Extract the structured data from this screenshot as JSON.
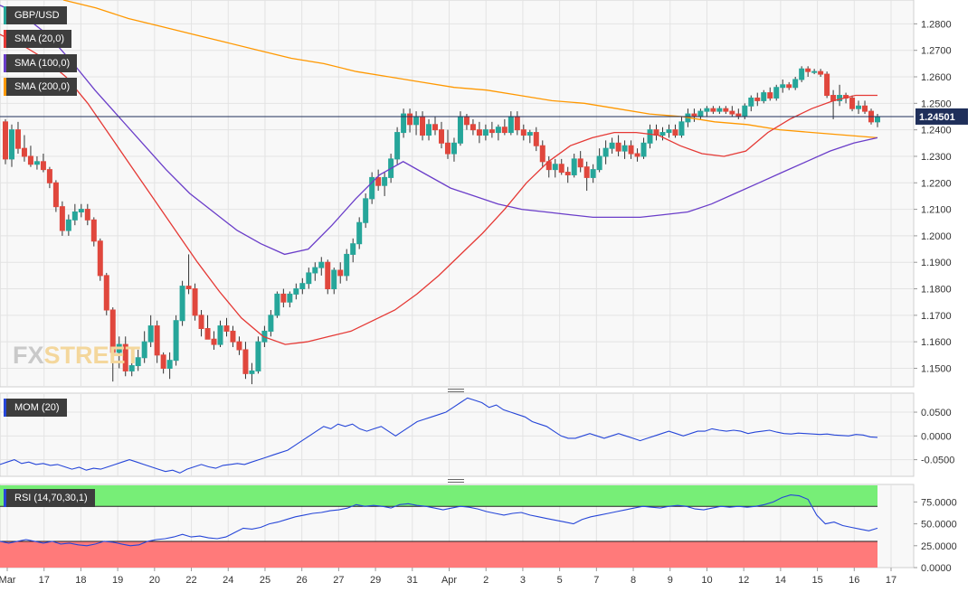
{
  "chart_data": {
    "type": "line",
    "instrument": "GBP/USD",
    "price_panel": {
      "ylim": [
        1.143,
        1.289
      ],
      "y_ticks": [
        "1.2800",
        "1.2700",
        "1.2600",
        "1.2500",
        "1.2400",
        "1.2300",
        "1.2200",
        "1.2100",
        "1.2000",
        "1.1900",
        "1.1800",
        "1.1700",
        "1.1600",
        "1.1500"
      ],
      "last_price": "1.24501",
      "legend": [
        {
          "label": "GBP/USD",
          "color": "#26a69a"
        },
        {
          "label": "SMA (20,0)",
          "color": "#e53935"
        },
        {
          "label": "SMA (100,0)",
          "color": "#6a3dc9"
        },
        {
          "label": "SMA (200,0)",
          "color": "#ff9800"
        }
      ],
      "candles": [
        [
          1.243,
          1.244,
          1.227,
          1.229
        ],
        [
          1.229,
          1.242,
          1.226,
          1.24
        ],
        [
          1.24,
          1.243,
          1.231,
          1.233
        ],
        [
          1.233,
          1.238,
          1.228,
          1.23
        ],
        [
          1.23,
          1.234,
          1.226,
          1.227
        ],
        [
          1.227,
          1.23,
          1.225,
          1.228
        ],
        [
          1.228,
          1.231,
          1.224,
          1.225
        ],
        [
          1.225,
          1.226,
          1.218,
          1.22
        ],
        [
          1.22,
          1.221,
          1.209,
          1.211
        ],
        [
          1.211,
          1.213,
          1.2,
          1.202
        ],
        [
          1.202,
          1.208,
          1.2,
          1.206
        ],
        [
          1.206,
          1.212,
          1.204,
          1.209
        ],
        [
          1.209,
          1.212,
          1.207,
          1.21
        ],
        [
          1.21,
          1.212,
          1.204,
          1.206
        ],
        [
          1.206,
          1.207,
          1.196,
          1.198
        ],
        [
          1.198,
          1.199,
          1.183,
          1.185
        ],
        [
          1.185,
          1.186,
          1.17,
          1.172
        ],
        [
          1.172,
          1.173,
          1.145,
          1.156
        ],
        [
          1.156,
          1.162,
          1.15,
          1.159
        ],
        [
          1.159,
          1.162,
          1.147,
          1.149
        ],
        [
          1.149,
          1.152,
          1.147,
          1.151
        ],
        [
          1.151,
          1.157,
          1.149,
          1.154
        ],
        [
          1.154,
          1.164,
          1.152,
          1.16
        ],
        [
          1.16,
          1.17,
          1.158,
          1.166
        ],
        [
          1.166,
          1.168,
          1.152,
          1.155
        ],
        [
          1.155,
          1.156,
          1.148,
          1.15
        ],
        [
          1.15,
          1.156,
          1.146,
          1.153
        ],
        [
          1.153,
          1.17,
          1.151,
          1.168
        ],
        [
          1.168,
          1.183,
          1.166,
          1.181
        ],
        [
          1.181,
          1.193,
          1.178,
          1.18
        ],
        [
          1.18,
          1.182,
          1.168,
          1.17
        ],
        [
          1.17,
          1.172,
          1.162,
          1.165
        ],
        [
          1.165,
          1.17,
          1.161,
          1.161
        ],
        [
          1.161,
          1.164,
          1.157,
          1.159
        ],
        [
          1.159,
          1.168,
          1.158,
          1.166
        ],
        [
          1.166,
          1.169,
          1.162,
          1.164
        ],
        [
          1.164,
          1.166,
          1.158,
          1.16
        ],
        [
          1.16,
          1.162,
          1.155,
          1.157
        ],
        [
          1.157,
          1.16,
          1.146,
          1.148
        ],
        [
          1.148,
          1.152,
          1.144,
          1.149
        ],
        [
          1.149,
          1.162,
          1.148,
          1.16
        ],
        [
          1.16,
          1.166,
          1.158,
          1.164
        ],
        [
          1.164,
          1.172,
          1.162,
          1.17
        ],
        [
          1.17,
          1.179,
          1.169,
          1.178
        ],
        [
          1.178,
          1.18,
          1.173,
          1.175
        ],
        [
          1.175,
          1.179,
          1.173,
          1.178
        ],
        [
          1.178,
          1.182,
          1.176,
          1.18
        ],
        [
          1.18,
          1.184,
          1.178,
          1.182
        ],
        [
          1.182,
          1.188,
          1.18,
          1.186
        ],
        [
          1.186,
          1.19,
          1.183,
          1.188
        ],
        [
          1.188,
          1.192,
          1.185,
          1.19
        ],
        [
          1.19,
          1.191,
          1.178,
          1.18
        ],
        [
          1.18,
          1.188,
          1.178,
          1.187
        ],
        [
          1.187,
          1.19,
          1.182,
          1.185
        ],
        [
          1.185,
          1.195,
          1.183,
          1.193
        ],
        [
          1.193,
          1.199,
          1.19,
          1.197
        ],
        [
          1.197,
          1.207,
          1.195,
          1.205
        ],
        [
          1.205,
          1.216,
          1.203,
          1.214
        ],
        [
          1.214,
          1.224,
          1.212,
          1.222
        ],
        [
          1.222,
          1.225,
          1.217,
          1.219
        ],
        [
          1.219,
          1.224,
          1.215,
          1.222
        ],
        [
          1.222,
          1.231,
          1.22,
          1.229
        ],
        [
          1.229,
          1.241,
          1.227,
          1.239
        ],
        [
          1.239,
          1.248,
          1.237,
          1.246
        ],
        [
          1.246,
          1.248,
          1.239,
          1.242
        ],
        [
          1.242,
          1.247,
          1.238,
          1.245
        ],
        [
          1.245,
          1.247,
          1.236,
          1.238
        ],
        [
          1.238,
          1.244,
          1.236,
          1.242
        ],
        [
          1.242,
          1.245,
          1.238,
          1.24
        ],
        [
          1.24,
          1.243,
          1.233,
          1.235
        ],
        [
          1.235,
          1.24,
          1.229,
          1.231
        ],
        [
          1.231,
          1.237,
          1.228,
          1.235
        ],
        [
          1.235,
          1.247,
          1.234,
          1.245
        ],
        [
          1.245,
          1.246,
          1.24,
          1.242
        ],
        [
          1.242,
          1.244,
          1.238,
          1.24
        ],
        [
          1.24,
          1.243,
          1.235,
          1.238
        ],
        [
          1.238,
          1.242,
          1.236,
          1.24
        ],
        [
          1.24,
          1.243,
          1.237,
          1.239
        ],
        [
          1.239,
          1.242,
          1.236,
          1.241
        ],
        [
          1.241,
          1.244,
          1.238,
          1.239
        ],
        [
          1.239,
          1.247,
          1.238,
          1.245
        ],
        [
          1.245,
          1.247,
          1.238,
          1.24
        ],
        [
          1.24,
          1.242,
          1.236,
          1.238
        ],
        [
          1.238,
          1.24,
          1.235,
          1.239
        ],
        [
          1.239,
          1.241,
          1.232,
          1.234
        ],
        [
          1.234,
          1.236,
          1.226,
          1.228
        ],
        [
          1.228,
          1.23,
          1.222,
          1.225
        ],
        [
          1.225,
          1.229,
          1.222,
          1.227
        ],
        [
          1.227,
          1.229,
          1.223,
          1.224
        ],
        [
          1.224,
          1.226,
          1.22,
          1.223
        ],
        [
          1.223,
          1.231,
          1.222,
          1.229
        ],
        [
          1.229,
          1.232,
          1.224,
          1.226
        ],
        [
          1.226,
          1.228,
          1.217,
          1.222
        ],
        [
          1.222,
          1.227,
          1.22,
          1.225
        ],
        [
          1.225,
          1.233,
          1.224,
          1.23
        ],
        [
          1.23,
          1.236,
          1.227,
          1.233
        ],
        [
          1.233,
          1.237,
          1.231,
          1.235
        ],
        [
          1.235,
          1.238,
          1.23,
          1.232
        ],
        [
          1.232,
          1.236,
          1.229,
          1.234
        ],
        [
          1.234,
          1.236,
          1.229,
          1.231
        ],
        [
          1.231,
          1.233,
          1.228,
          1.23
        ],
        [
          1.23,
          1.237,
          1.229,
          1.235
        ],
        [
          1.235,
          1.242,
          1.233,
          1.24
        ],
        [
          1.24,
          1.242,
          1.236,
          1.238
        ],
        [
          1.238,
          1.241,
          1.236,
          1.239
        ],
        [
          1.239,
          1.242,
          1.237,
          1.24
        ],
        [
          1.24,
          1.242,
          1.237,
          1.238
        ],
        [
          1.238,
          1.245,
          1.237,
          1.243
        ],
        [
          1.243,
          1.248,
          1.241,
          1.246
        ],
        [
          1.246,
          1.248,
          1.243,
          1.245
        ],
        [
          1.245,
          1.248,
          1.244,
          1.247
        ],
        [
          1.247,
          1.249,
          1.245,
          1.248
        ],
        [
          1.248,
          1.249,
          1.246,
          1.247
        ],
        [
          1.247,
          1.249,
          1.246,
          1.248
        ],
        [
          1.248,
          1.249,
          1.246,
          1.247
        ],
        [
          1.247,
          1.249,
          1.245,
          1.246
        ],
        [
          1.246,
          1.248,
          1.244,
          1.245
        ],
        [
          1.245,
          1.25,
          1.244,
          1.249
        ],
        [
          1.249,
          1.253,
          1.247,
          1.252
        ],
        [
          1.252,
          1.254,
          1.249,
          1.251
        ],
        [
          1.251,
          1.255,
          1.25,
          1.254
        ],
        [
          1.254,
          1.256,
          1.251,
          1.252
        ],
        [
          1.252,
          1.257,
          1.251,
          1.256
        ],
        [
          1.256,
          1.259,
          1.254,
          1.257
        ],
        [
          1.257,
          1.258,
          1.255,
          1.256
        ],
        [
          1.256,
          1.26,
          1.255,
          1.259
        ],
        [
          1.259,
          1.264,
          1.258,
          1.263
        ],
        [
          1.263,
          1.264,
          1.26,
          1.262
        ],
        [
          1.262,
          1.263,
          1.261,
          1.262
        ],
        [
          1.262,
          1.263,
          1.26,
          1.261
        ],
        [
          1.261,
          1.262,
          1.252,
          1.253
        ],
        [
          1.253,
          1.255,
          1.244,
          1.251
        ],
        [
          1.251,
          1.257,
          1.249,
          1.253
        ],
        [
          1.253,
          1.254,
          1.25,
          1.252
        ],
        [
          1.252,
          1.253,
          1.247,
          1.248
        ],
        [
          1.248,
          1.251,
          1.246,
          1.249
        ],
        [
          1.249,
          1.251,
          1.246,
          1.247
        ],
        [
          1.247,
          1.248,
          1.242,
          1.243
        ],
        [
          1.243,
          1.246,
          1.241,
          1.245
        ]
      ],
      "sma20": [
        1.276,
        1.272,
        1.267,
        1.26,
        1.25,
        1.238,
        1.226,
        1.214,
        1.202,
        1.19,
        1.179,
        1.169,
        1.162,
        1.159,
        1.16,
        1.162,
        1.164,
        1.168,
        1.172,
        1.178,
        1.185,
        1.193,
        1.201,
        1.21,
        1.22,
        1.228,
        1.234,
        1.237,
        1.239,
        1.239,
        1.238,
        1.234,
        1.231,
        1.23,
        1.232,
        1.239,
        1.244,
        1.248,
        1.251,
        1.253,
        1.253
      ],
      "sma100": [
        1.287,
        1.283,
        1.276,
        1.266,
        1.255,
        1.245,
        1.235,
        1.225,
        1.216,
        1.209,
        1.202,
        1.197,
        1.193,
        1.195,
        1.204,
        1.214,
        1.223,
        1.228,
        1.223,
        1.218,
        1.215,
        1.212,
        1.21,
        1.209,
        1.208,
        1.207,
        1.207,
        1.207,
        1.208,
        1.209,
        1.212,
        1.216,
        1.22,
        1.224,
        1.228,
        1.232,
        1.235,
        1.237
      ],
      "sma200": [
        1.289,
        1.286,
        1.282,
        1.279,
        1.276,
        1.273,
        1.27,
        1.267,
        1.265,
        1.262,
        1.26,
        1.258,
        1.256,
        1.255,
        1.253,
        1.251,
        1.25,
        1.248,
        1.246,
        1.245,
        1.243,
        1.242,
        1.24,
        1.239,
        1.238,
        1.237
      ]
    },
    "mom_panel": {
      "label": "MOM (20)",
      "ylim": [
        -0.085,
        0.09
      ],
      "y_ticks": [
        "0.0500",
        "0.0000",
        "-0.0500"
      ],
      "values": [
        -0.06,
        -0.055,
        -0.05,
        -0.058,
        -0.055,
        -0.06,
        -0.058,
        -0.062,
        -0.06,
        -0.065,
        -0.07,
        -0.066,
        -0.072,
        -0.068,
        -0.07,
        -0.065,
        -0.06,
        -0.055,
        -0.05,
        -0.055,
        -0.06,
        -0.065,
        -0.07,
        -0.075,
        -0.072,
        -0.078,
        -0.07,
        -0.065,
        -0.06,
        -0.065,
        -0.068,
        -0.062,
        -0.06,
        -0.058,
        -0.06,
        -0.055,
        -0.05,
        -0.045,
        -0.04,
        -0.035,
        -0.03,
        -0.02,
        -0.01,
        0.0,
        0.01,
        0.02,
        0.015,
        0.025,
        0.02,
        0.025,
        0.015,
        0.01,
        0.015,
        0.02,
        0.01,
        0.0,
        0.01,
        0.02,
        0.03,
        0.035,
        0.04,
        0.045,
        0.05,
        0.06,
        0.07,
        0.08,
        0.075,
        0.07,
        0.06,
        0.065,
        0.055,
        0.05,
        0.045,
        0.04,
        0.03,
        0.025,
        0.02,
        0.01,
        0.0,
        -0.005,
        -0.005,
        0.0,
        0.005,
        0.0,
        -0.005,
        0.0,
        0.005,
        0.0,
        -0.005,
        -0.01,
        -0.005,
        0.0,
        0.005,
        0.01,
        0.005,
        0.0,
        0.005,
        0.01,
        0.01,
        0.015,
        0.012,
        0.01,
        0.012,
        0.01,
        0.005,
        0.008,
        0.01,
        0.012,
        0.008,
        0.005,
        0.004,
        0.006,
        0.005,
        0.004,
        0.003,
        0.004,
        0.002,
        0.001,
        0.0,
        0.003,
        0.002,
        -0.002,
        -0.003
      ],
      "line_color": "#2646d8"
    },
    "rsi_panel": {
      "label": "RSI (14,70,30,1)",
      "ylim": [
        0,
        95
      ],
      "y_ticks": [
        "75.0000",
        "50.0000",
        "25.0000",
        "0.0000"
      ],
      "overbought": 70,
      "oversold": 30,
      "values": [
        30,
        28,
        30,
        32,
        30,
        28,
        30,
        27,
        28,
        26,
        25,
        27,
        30,
        29,
        27,
        25,
        26,
        30,
        32,
        33,
        35,
        38,
        35,
        36,
        34,
        33,
        35,
        40,
        45,
        44,
        46,
        50,
        52,
        55,
        58,
        60,
        62,
        63,
        65,
        66,
        68,
        72,
        70,
        71,
        70,
        68,
        72,
        73,
        71,
        70,
        68,
        66,
        68,
        70,
        69,
        67,
        64,
        62,
        60,
        62,
        63,
        60,
        58,
        56,
        54,
        52,
        50,
        55,
        58,
        60,
        62,
        64,
        66,
        68,
        70,
        69,
        68,
        70,
        71,
        70,
        67,
        66,
        68,
        70,
        69,
        70,
        69,
        70,
        72,
        75,
        80,
        83,
        82,
        78,
        60,
        50,
        52,
        48,
        46,
        44,
        42,
        45
      ],
      "line_color": "#2646d8",
      "overbought_color": "#77ee77",
      "oversold_color": "#ff7a7a"
    },
    "x_tick_labels": [
      "Mar",
      "17",
      "18",
      "19",
      "20",
      "22",
      "24",
      "25",
      "26",
      "27",
      "29",
      "31",
      "Apr",
      "2",
      "3",
      "5",
      "7",
      "8",
      "9",
      "10",
      "12",
      "14",
      "15",
      "16",
      "17"
    ]
  },
  "watermark": {
    "fx": "FX",
    "street": "STREET"
  }
}
